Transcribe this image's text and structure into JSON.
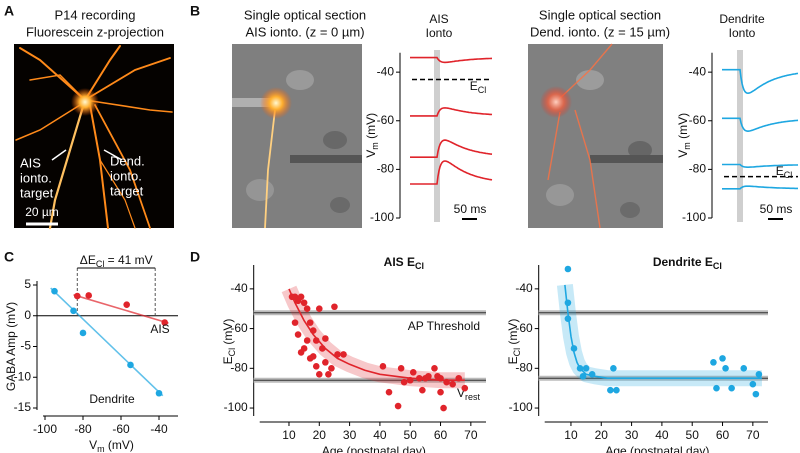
{
  "figure": {
    "A": {
      "letter": "A",
      "title": [
        "P14 recording",
        "Fluorescein z-projection"
      ],
      "ais_label": [
        "AIS",
        "ionto.",
        "target"
      ],
      "dend_label": [
        "Dend.",
        "ionto.",
        "target"
      ],
      "scale": "20 µm"
    },
    "B": {
      "letter": "B"
    },
    "C": {
      "letter": "C"
    },
    "D": {
      "letter": "D"
    }
  },
  "chart_data": [
    {
      "type": "trace",
      "title": [
        "Single optical section",
        "AIS ionto. (z = 0 µm)"
      ],
      "stim_label": [
        "AIS",
        "Ionto"
      ],
      "y_label": [
        "V",
        "m",
        " (mV)"
      ],
      "ylim": [
        -100,
        -32
      ],
      "yticks": [
        -40,
        -60,
        -80,
        -100
      ],
      "color": "#e0242b",
      "values": [
        -34,
        -58,
        -75,
        -86
      ],
      "ecl": -43,
      "ecl_label": [
        "E",
        "Cl"
      ],
      "scale": "50 ms"
    },
    {
      "type": "trace",
      "title": [
        "Single optical section",
        "Dend. ionto. (z = 15 µm)"
      ],
      "stim_label": [
        "Dendrite",
        "Ionto"
      ],
      "y_label": [
        "V",
        "m",
        " (mV)"
      ],
      "ylim": [
        -100,
        -32
      ],
      "yticks": [
        -40,
        -60,
        -80,
        -100
      ],
      "color": "#1ea7e1",
      "values": [
        -39,
        -59,
        -78,
        -88
      ],
      "ecl": -83,
      "ecl_label": [
        "E",
        "Cl"
      ],
      "scale": "50 ms"
    },
    {
      "type": "scatter",
      "x_label": [
        "V",
        "m",
        " (mV)"
      ],
      "y_label": "GABA Amp (mV)",
      "xlim": [
        -100,
        -30
      ],
      "xticks": [
        -100,
        -80,
        -60,
        -40
      ],
      "ylim": [
        -15,
        5
      ],
      "yticks": [
        5,
        0,
        -5,
        -10,
        -15
      ],
      "zero_line": true,
      "annotation": [
        "ΔE",
        "Cl",
        " = 41 mV"
      ],
      "delta_x": [
        -83,
        -42
      ],
      "series": [
        {
          "name": "AIS",
          "color": "#e0242b",
          "x": [
            -83,
            -77,
            -57,
            -37
          ],
          "values": [
            3.2,
            3.3,
            1.8,
            -1.1
          ],
          "fit_x": [
            -85,
            -35
          ],
          "fit": [
            3.4,
            -1.2
          ]
        },
        {
          "name": "Dendrite",
          "color": "#1ea7e1",
          "x": [
            -95,
            -85,
            -80,
            -55,
            -40
          ],
          "values": [
            4,
            0.8,
            -2.8,
            -8,
            -12.6
          ],
          "fit_x": [
            -97,
            -38
          ],
          "fit": [
            4.5,
            -13
          ]
        }
      ]
    },
    {
      "type": "scatter",
      "title": [
        "AIS E",
        "Cl"
      ],
      "title_color": "#e0242b",
      "x_label": "Age (postnatal day)",
      "y_label": [
        "E",
        "Cl",
        " (mV)"
      ],
      "xlim": [
        1,
        75
      ],
      "xticks": [
        10,
        20,
        30,
        40,
        50,
        60,
        70
      ],
      "ylim": [
        -103,
        -30
      ],
      "yticks": [
        -40,
        -60,
        -80,
        -100
      ],
      "ci": true,
      "hlines": [
        {
          "value": -52,
          "label": "AP Threshold"
        },
        {
          "value": -86,
          "label": [
            "V",
            "rest"
          ]
        }
      ],
      "series": [
        {
          "color": "#e0242b",
          "x": [
            11,
            12,
            13,
            14,
            15,
            16,
            17,
            18,
            19,
            20,
            21,
            22,
            23,
            24,
            25,
            12,
            13,
            14,
            15,
            16,
            17,
            18,
            19,
            20,
            22,
            26,
            28,
            41,
            43,
            46,
            47,
            48,
            50,
            51,
            53,
            54,
            55,
            56,
            58,
            59,
            60,
            60,
            61,
            62,
            64,
            66,
            68
          ],
          "values": [
            -44,
            -44,
            -46,
            -44,
            -47,
            -50,
            -57,
            -61,
            -66,
            -50,
            -70,
            -77,
            -83,
            -80,
            -49,
            -57,
            -63,
            -72,
            -70,
            -66,
            -75,
            -74,
            -79,
            -83,
            -65,
            -73,
            -73,
            -79,
            -92,
            -99,
            -80,
            -87,
            -86,
            -82,
            -85,
            -91,
            -85,
            -84,
            -80,
            -84,
            -85,
            -92,
            -100,
            -87,
            -88,
            -85,
            -90
          ],
          "fit_x": [
            10,
            12,
            15,
            18,
            22,
            26,
            30,
            35,
            40,
            50,
            60,
            68
          ],
          "fit": [
            -40,
            -47,
            -56,
            -63,
            -70,
            -75,
            -78,
            -81,
            -83,
            -85,
            -86,
            -86
          ]
        }
      ]
    },
    {
      "type": "scatter",
      "title": [
        "Dendrite E",
        "Cl"
      ],
      "title_color": "#1ea7e1",
      "x_label": "Age (postnatal day)",
      "y_label": [
        "E",
        "Cl",
        " (mV)"
      ],
      "xlim": [
        2,
        75
      ],
      "xticks": [
        10,
        20,
        30,
        40,
        50,
        60,
        70
      ],
      "ylim": [
        -103,
        -30
      ],
      "yticks": [
        -40,
        -60,
        -80,
        -100
      ],
      "ci": true,
      "hlines": [
        {
          "value": -52
        },
        {
          "value": -85
        }
      ],
      "series": [
        {
          "color": "#1ea7e1",
          "x": [
            9,
            9,
            9,
            11,
            13,
            14,
            15,
            17,
            23,
            24,
            25,
            57,
            58,
            60,
            61,
            63,
            67,
            70,
            71,
            72
          ],
          "values": [
            -30,
            -47,
            -55,
            -70,
            -80,
            -84,
            -80,
            -83,
            -91,
            -80,
            -91,
            -77,
            -90,
            -75,
            -80,
            -90,
            -80,
            -88,
            -93,
            -83
          ],
          "fit_x": [
            8,
            9,
            10,
            11,
            12,
            13,
            15,
            18,
            22,
            30,
            50,
            73
          ],
          "fit": [
            -38,
            -52,
            -64,
            -72,
            -77,
            -80,
            -83,
            -84,
            -85,
            -85,
            -85,
            -85
          ]
        }
      ]
    }
  ]
}
